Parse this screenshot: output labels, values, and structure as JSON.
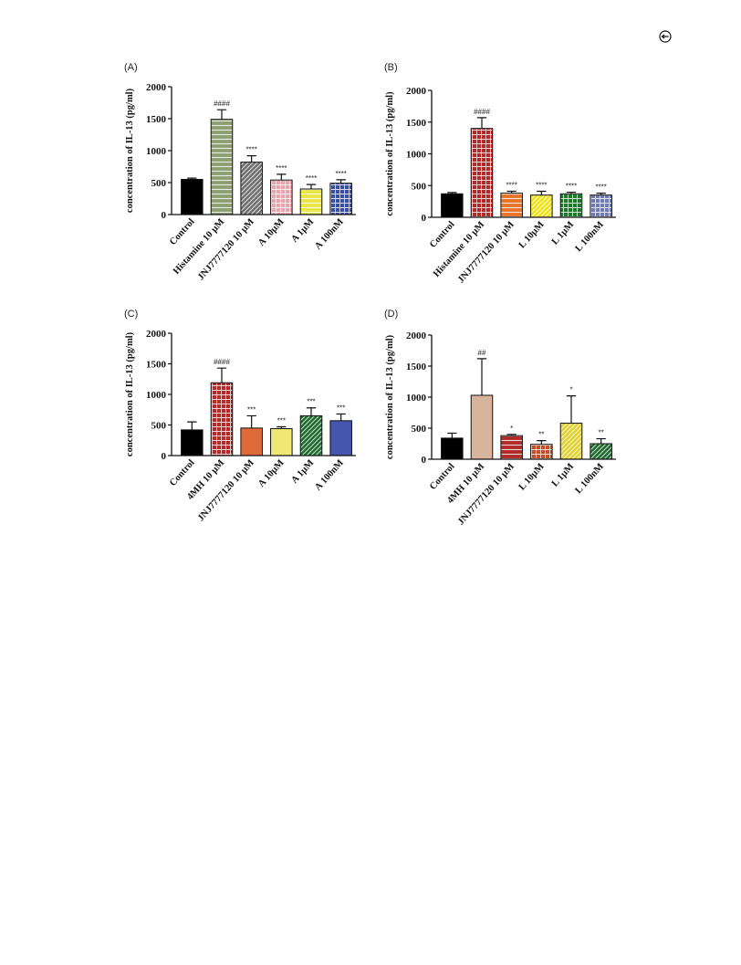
{
  "page_icon": "circle-marker-icon",
  "chart_data": [
    {
      "id": "A",
      "type": "bar",
      "panel_label": "(A)",
      "ylabel": "concentration of IL-13 (pg/ml)",
      "xlabel": "",
      "ylim": [
        0,
        2000
      ],
      "yticks": [
        0,
        500,
        1000,
        1500,
        2000
      ],
      "grid": false,
      "legend": "none",
      "categories": [
        "Control",
        "Histamine  10 µM",
        "JNJ7777120  10 µM",
        "A   10µM",
        "A   1µM",
        "A   100nM"
      ],
      "values": [
        550,
        1490,
        820,
        540,
        400,
        490
      ],
      "errors": [
        20,
        150,
        100,
        90,
        70,
        55
      ],
      "significance": [
        "",
        "####",
        "****",
        "****",
        "****",
        "****"
      ],
      "colors": [
        "#000000",
        "#8ea072",
        "#6e6e6e",
        "#e8a4ac",
        "#e9e64a",
        "#3b4fa0"
      ],
      "patterns": [
        "solid",
        "hlines",
        "diag",
        "grid",
        "hlines",
        "grid"
      ]
    },
    {
      "id": "B",
      "type": "bar",
      "panel_label": "(B)",
      "ylabel": "concentration of IL-13 (pg/ml)",
      "xlabel": "",
      "ylim": [
        0,
        2000
      ],
      "yticks": [
        0,
        500,
        1000,
        1500,
        2000
      ],
      "grid": false,
      "legend": "none",
      "categories": [
        "Control",
        "Histamine  10 µM",
        "JNJ7777120  10 µM",
        "L   10µM",
        "L   1µM",
        "L   100nM"
      ],
      "values": [
        370,
        1400,
        380,
        350,
        370,
        350
      ],
      "errors": [
        20,
        170,
        30,
        60,
        25,
        30
      ],
      "significance": [
        "",
        "####",
        "****",
        "****",
        "****",
        "****"
      ],
      "colors": [
        "#000000",
        "#b02a2a",
        "#e8742a",
        "#eee21a",
        "#1d7a2a",
        "#6f7cb8"
      ],
      "patterns": [
        "solid",
        "grid",
        "hlines",
        "diag",
        "grid",
        "grid"
      ]
    },
    {
      "id": "C",
      "type": "bar",
      "panel_label": "(C)",
      "ylabel": "concentration of IL-13 (pg/ml)",
      "xlabel": "",
      "ylim": [
        0,
        2000
      ],
      "yticks": [
        0,
        500,
        1000,
        1500,
        2000
      ],
      "grid": false,
      "legend": "none",
      "categories": [
        "Control",
        "4MH  10 µM",
        "JNJ7777120  10 µM",
        "A   10µM",
        "A   1µM",
        "A   100nM"
      ],
      "values": [
        420,
        1190,
        450,
        440,
        650,
        570
      ],
      "errors": [
        130,
        240,
        200,
        30,
        130,
        110
      ],
      "significance": [
        "",
        "####",
        "***",
        "***",
        "***",
        "***"
      ],
      "colors": [
        "#000000",
        "#b02a2a",
        "#e06b3a",
        "#efe875",
        "#1d6a2e",
        "#4656b0"
      ],
      "patterns": [
        "solid",
        "grid",
        "solid",
        "solid",
        "diag",
        "solid"
      ]
    },
    {
      "id": "D",
      "type": "bar",
      "panel_label": "(D)",
      "ylabel": "concentration of IL-13 (pg/ml)",
      "xlabel": "",
      "ylim": [
        0,
        2000
      ],
      "yticks": [
        0,
        500,
        1000,
        1500,
        2000
      ],
      "grid": false,
      "legend": "none",
      "categories": [
        "Control",
        "4MH  10 µM",
        "JNJ7777120  10 µM",
        "L   10µM",
        "L   1µM",
        "L   100nM"
      ],
      "values": [
        340,
        1030,
        380,
        240,
        580,
        250
      ],
      "errors": [
        80,
        590,
        20,
        60,
        440,
        80
      ],
      "significance": [
        "",
        "##",
        "*",
        "**",
        "*",
        "**"
      ],
      "colors": [
        "#000000",
        "#d8b49c",
        "#b02a2a",
        "#c0502a",
        "#e0d030",
        "#1d6a2e"
      ],
      "patterns": [
        "solid",
        "solid",
        "hlines",
        "grid",
        "diag",
        "diag"
      ]
    }
  ]
}
